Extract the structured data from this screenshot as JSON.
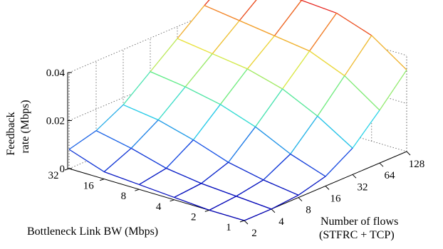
{
  "chart_data": {
    "type": "surface3d",
    "zlabel_lines": [
      "Feedback",
      "rate (Mbps)"
    ],
    "xlabel": "Bottleneck Link BW (Mbps)",
    "ylabel_lines": [
      "Number of flows",
      "(STFRC + TCP)"
    ],
    "bw_ticks": [
      "32",
      "16",
      "8",
      "4",
      "2",
      "1"
    ],
    "flow_ticks": [
      "2",
      "4",
      "8",
      "16",
      "32",
      "64",
      "128"
    ],
    "z_ticks": [
      "0",
      "0.02",
      "0.04"
    ],
    "zlim": [
      0,
      0.04
    ],
    "z_values": [
      [
        0.008,
        0.011,
        0.017,
        0.026,
        0.035,
        0.044,
        0.052
      ],
      [
        0.003,
        0.008,
        0.015,
        0.024,
        0.033,
        0.042,
        0.051
      ],
      [
        0.002,
        0.004,
        0.011,
        0.021,
        0.031,
        0.04,
        0.05
      ],
      [
        0.001,
        0.002,
        0.006,
        0.016,
        0.027,
        0.038,
        0.049
      ],
      [
        0.0,
        0.001,
        0.003,
        0.009,
        0.02,
        0.032,
        0.044
      ],
      [
        0.0,
        0.0,
        0.001,
        0.004,
        0.011,
        0.022,
        0.034
      ]
    ],
    "colormap": [
      "#0000b4",
      "#1a52e6",
      "#2ad6e8",
      "#63ec8a",
      "#e8e840",
      "#f49a2a",
      "#e51818"
    ],
    "grid": true
  }
}
